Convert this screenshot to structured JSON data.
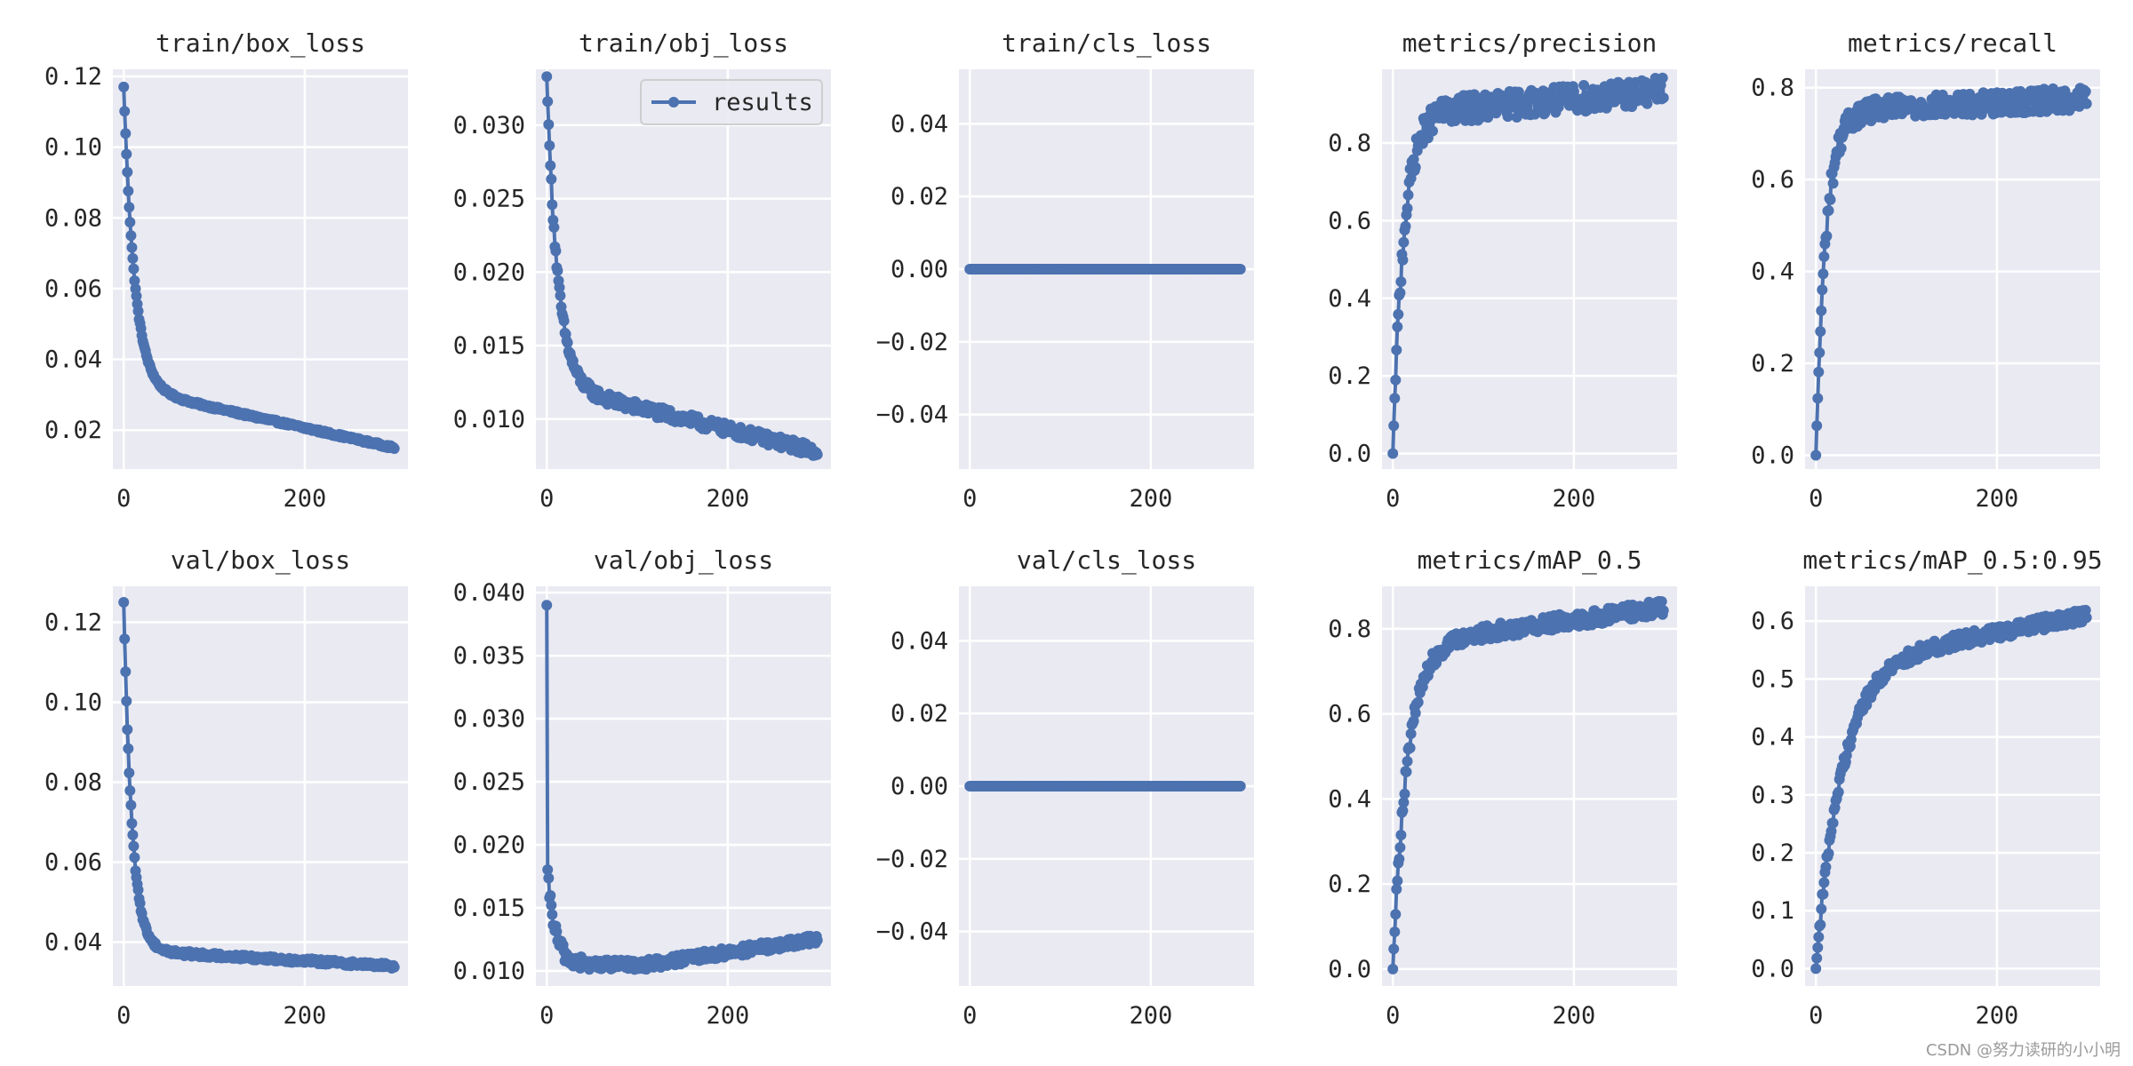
{
  "style": {
    "axes_bg": "#eaeaf2",
    "grid": "#ffffff",
    "series_color": "#4c72b0"
  },
  "watermark": "CSDN @努力读研的小小明",
  "chart_data": [
    {
      "type": "line",
      "title": "train/box_loss",
      "xlim": [
        -12,
        314
      ],
      "ylim": [
        0.009,
        0.122
      ],
      "xticks": [
        0,
        200
      ],
      "yticks": [
        0.02,
        0.04,
        0.06,
        0.08,
        0.1,
        0.12
      ],
      "ytick_labels": [
        "0.02",
        "0.04",
        "0.06",
        "0.08",
        "0.10",
        "0.12"
      ],
      "grid": true,
      "series": [
        {
          "name": "results",
          "curve": "decay",
          "x_end": 299,
          "y0": 0.117,
          "y1": 0.015,
          "tau": 12,
          "amp": 0.017,
          "noise": 0.0004
        }
      ]
    },
    {
      "type": "line",
      "title": "train/obj_loss",
      "xlim": [
        -12,
        314
      ],
      "ylim": [
        0.0066,
        0.0338
      ],
      "xticks": [
        0,
        200
      ],
      "yticks": [
        0.01,
        0.015,
        0.02,
        0.025,
        0.03
      ],
      "ytick_labels": [
        "0.010",
        "0.015",
        "0.020",
        "0.025",
        "0.030"
      ],
      "grid": true,
      "legend": {
        "label": "results",
        "loc": "upper right"
      },
      "series": [
        {
          "name": "results",
          "curve": "decay",
          "x_end": 299,
          "y0": 0.0333,
          "y1": 0.0078,
          "tau": 12,
          "amp": 0.0045,
          "noise": 0.0004
        }
      ]
    },
    {
      "type": "line",
      "title": "train/cls_loss",
      "xlim": [
        -12,
        314
      ],
      "ylim": [
        -0.055,
        0.055
      ],
      "xticks": [
        0,
        200
      ],
      "yticks": [
        -0.04,
        -0.02,
        0.0,
        0.02,
        0.04
      ],
      "ytick_labels": [
        "−0.04",
        "−0.02",
        "0.00",
        "0.02",
        "0.04"
      ],
      "grid": true,
      "series": [
        {
          "name": "results",
          "curve": "flat",
          "x_end": 299,
          "y0": 0
        }
      ]
    },
    {
      "type": "line",
      "title": "metrics/precision",
      "xlim": [
        -12,
        314
      ],
      "ylim": [
        -0.04,
        0.99
      ],
      "xticks": [
        0,
        200
      ],
      "yticks": [
        0.0,
        0.2,
        0.4,
        0.6,
        0.8
      ],
      "ytick_labels": [
        "0.0",
        "0.2",
        "0.4",
        "0.6",
        "0.8"
      ],
      "grid": true,
      "series": [
        {
          "name": "results",
          "curve": "rise",
          "x_end": 299,
          "y_start": 0.0,
          "y_end": 0.88,
          "k": 12,
          "trend": 0.0002,
          "noise": 0.035
        }
      ]
    },
    {
      "type": "line",
      "title": "metrics/recall",
      "xlim": [
        -12,
        314
      ],
      "ylim": [
        -0.03,
        0.84
      ],
      "xticks": [
        0,
        200
      ],
      "yticks": [
        0.0,
        0.2,
        0.4,
        0.6,
        0.8
      ],
      "ytick_labels": [
        "0.0",
        "0.2",
        "0.4",
        "0.6",
        "0.8"
      ],
      "grid": true,
      "series": [
        {
          "name": "results",
          "curve": "rise",
          "x_end": 299,
          "y_start": 0.0,
          "y_end": 0.75,
          "k": 11,
          "trend": 0.0001,
          "noise": 0.025
        }
      ]
    },
    {
      "type": "line",
      "title": "val/box_loss",
      "xlim": [
        -12,
        314
      ],
      "ylim": [
        0.029,
        0.129
      ],
      "xticks": [
        0,
        200
      ],
      "yticks": [
        0.04,
        0.06,
        0.08,
        0.1,
        0.12
      ],
      "ytick_labels": [
        "0.04",
        "0.06",
        "0.08",
        "0.10",
        "0.12"
      ],
      "grid": true,
      "series": [
        {
          "name": "results",
          "curve": "decay",
          "x_end": 299,
          "y0": 0.125,
          "y1": 0.034,
          "tau": 9,
          "amp": 0.004,
          "noise": 0.0006
        }
      ]
    },
    {
      "type": "line",
      "title": "val/obj_loss",
      "xlim": [
        -12,
        314
      ],
      "ylim": [
        0.0088,
        0.0405
      ],
      "xticks": [
        0,
        200
      ],
      "yticks": [
        0.01,
        0.015,
        0.02,
        0.025,
        0.03,
        0.035,
        0.04
      ],
      "ytick_labels": [
        "0.010",
        "0.015",
        "0.020",
        "0.025",
        "0.030",
        "0.035",
        "0.040"
      ],
      "grid": true,
      "series": [
        {
          "name": "results",
          "curve": "obj_val",
          "x_end": 299,
          "y0": 0.039,
          "y_min": 0.0105,
          "y_end": 0.0125,
          "noise": 0.0004
        }
      ]
    },
    {
      "type": "line",
      "title": "val/cls_loss",
      "xlim": [
        -12,
        314
      ],
      "ylim": [
        -0.055,
        0.055
      ],
      "xticks": [
        0,
        200
      ],
      "yticks": [
        -0.04,
        -0.02,
        0.0,
        0.02,
        0.04
      ],
      "ytick_labels": [
        "−0.04",
        "−0.02",
        "0.00",
        "0.02",
        "0.04"
      ],
      "grid": true,
      "series": [
        {
          "name": "results",
          "curve": "flat",
          "x_end": 299,
          "y0": 0
        }
      ]
    },
    {
      "type": "line",
      "title": "metrics/mAP_0.5",
      "xlim": [
        -12,
        314
      ],
      "ylim": [
        -0.04,
        0.9
      ],
      "xticks": [
        0,
        200
      ],
      "yticks": [
        0.0,
        0.2,
        0.4,
        0.6,
        0.8
      ],
      "ytick_labels": [
        "0.0",
        "0.2",
        "0.4",
        "0.6",
        "0.8"
      ],
      "grid": true,
      "series": [
        {
          "name": "results",
          "curve": "rise",
          "x_end": 299,
          "y_start": 0.0,
          "y_end": 0.77,
          "k": 16,
          "trend": 0.0003,
          "noise": 0.018
        }
      ]
    },
    {
      "type": "line",
      "title": "metrics/mAP_0.5:0.95",
      "xlim": [
        -12,
        314
      ],
      "ylim": [
        -0.03,
        0.66
      ],
      "xticks": [
        0,
        200
      ],
      "yticks": [
        0.0,
        0.1,
        0.2,
        0.3,
        0.4,
        0.5,
        0.6
      ],
      "ytick_labels": [
        "0.0",
        "0.1",
        "0.2",
        "0.3",
        "0.4",
        "0.5",
        "0.6"
      ],
      "grid": true,
      "series": [
        {
          "name": "results",
          "curve": "rise",
          "x_end": 299,
          "y_start": 0.0,
          "y_end": 0.53,
          "k": 28,
          "trend": 0.0003,
          "noise": 0.012
        }
      ]
    }
  ]
}
